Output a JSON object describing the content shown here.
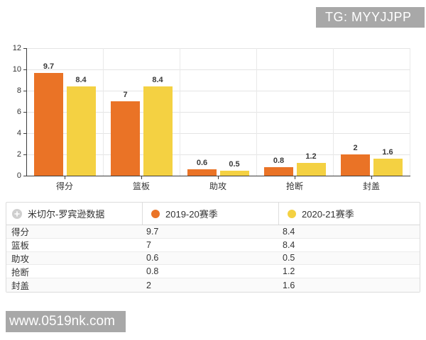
{
  "badges": {
    "top_right": "TG: MYYJJPP",
    "bottom_left": "www.0519nk.com"
  },
  "chart_data": {
    "type": "bar",
    "title": "",
    "categories": [
      "得分",
      "篮板",
      "助攻",
      "抢断",
      "封盖"
    ],
    "series": [
      {
        "name": "2019-20赛季",
        "color": "#ea7326",
        "values": [
          9.7,
          7,
          0.6,
          0.8,
          2
        ]
      },
      {
        "name": "2020-21赛季",
        "color": "#f4d142",
        "values": [
          8.4,
          8.4,
          0.5,
          1.2,
          1.6
        ]
      }
    ],
    "xlabel": "",
    "ylabel": "",
    "ylim": [
      0,
      12
    ],
    "ytick_step": 2,
    "grid": true,
    "legend_position": "table-header"
  },
  "table": {
    "header": {
      "title": "米切尔-罗宾逊数据",
      "icon": "plus-circle-icon"
    }
  },
  "colors": {
    "badge_bg": "#a8a8a8",
    "axis": "#3c3c3c",
    "gridline": "#e4e4e4"
  }
}
